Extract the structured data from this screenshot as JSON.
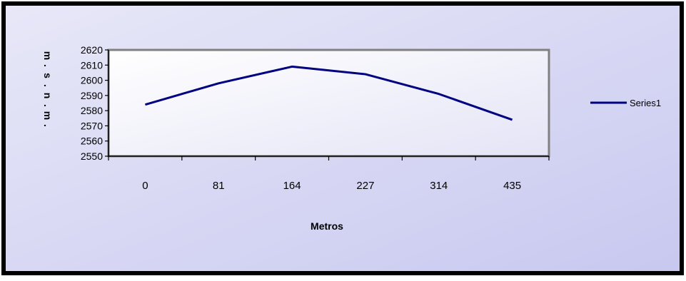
{
  "chart_data": {
    "type": "line",
    "categories": [
      "0",
      "81",
      "164",
      "227",
      "314",
      "435"
    ],
    "series": [
      {
        "name": "Series1",
        "values": [
          2584,
          2598,
          2609,
          2604,
          2591,
          2574
        ],
        "color": "#000080"
      }
    ],
    "xlabel": "Metros",
    "ylabel": "m.s.n.m.",
    "ylim": [
      2550,
      2620
    ],
    "yticks": [
      "2550",
      "2560",
      "2570",
      "2580",
      "2590",
      "2600",
      "2610",
      "2620"
    ],
    "grid": false,
    "legend_position": "right",
    "background": {
      "outer_top": "#e8e8f8",
      "outer_bottom": "#c8c8f0",
      "plot_top": "#ffffff",
      "plot_bottom": "#e4e4f6",
      "border": "#000000",
      "plot_border": "#808080"
    }
  }
}
